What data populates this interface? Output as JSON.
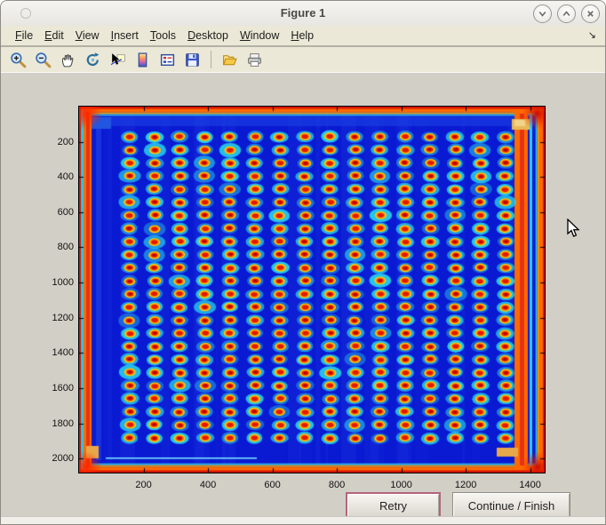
{
  "window": {
    "title": "Figure 1",
    "buttons": [
      {
        "name": "minimize"
      },
      {
        "name": "maximize"
      },
      {
        "name": "close"
      }
    ]
  },
  "menubar": {
    "items": [
      "File",
      "Edit",
      "View",
      "Insert",
      "Tools",
      "Desktop",
      "Window",
      "Help"
    ]
  },
  "toolbar": {
    "items": [
      "zoom-in",
      "zoom-out",
      "pan",
      "rotate-3d",
      "data-cursor",
      "insert-colorbar",
      "insert-legend",
      "save-figure",
      "open-file",
      "print-figure"
    ]
  },
  "chart_data": {
    "type": "heatmap",
    "title": "",
    "xlabel": "",
    "ylabel": "",
    "colormap": "jet",
    "xlim": [
      0,
      1445
    ],
    "ylim": [
      0,
      2080
    ],
    "x_ticks": [
      200,
      400,
      600,
      800,
      1000,
      1200,
      1400
    ],
    "y_ticks": [
      200,
      400,
      600,
      800,
      1000,
      1200,
      1400,
      1600,
      1800,
      2000
    ],
    "grid": {
      "rows": 24,
      "cols": 16
    },
    "spot_x_range": [
      157,
      1323
    ],
    "spot_y_range": [
      172,
      1884
    ],
    "description": "Scanned microtiter-plate image: 24 rows x 16 columns of hot spots (dark-red cores with orange/yellow rings and cyan halos) on a deep blue background; plate rim appears as bright red/orange frame with cyan inner lip",
    "colors": {
      "background_blue": "#0a19d2",
      "spot_core": "#b40500",
      "spot_red": "#e31800",
      "spot_orange": "#ff7700",
      "spot_yellow": "#ffd400",
      "halo_cyan": "#28dcf0",
      "rim_red": "#d41400",
      "rim_orange": "#ff6a00"
    }
  },
  "action_buttons": {
    "retry": "Retry",
    "continue_finish": "Continue / Finish"
  }
}
